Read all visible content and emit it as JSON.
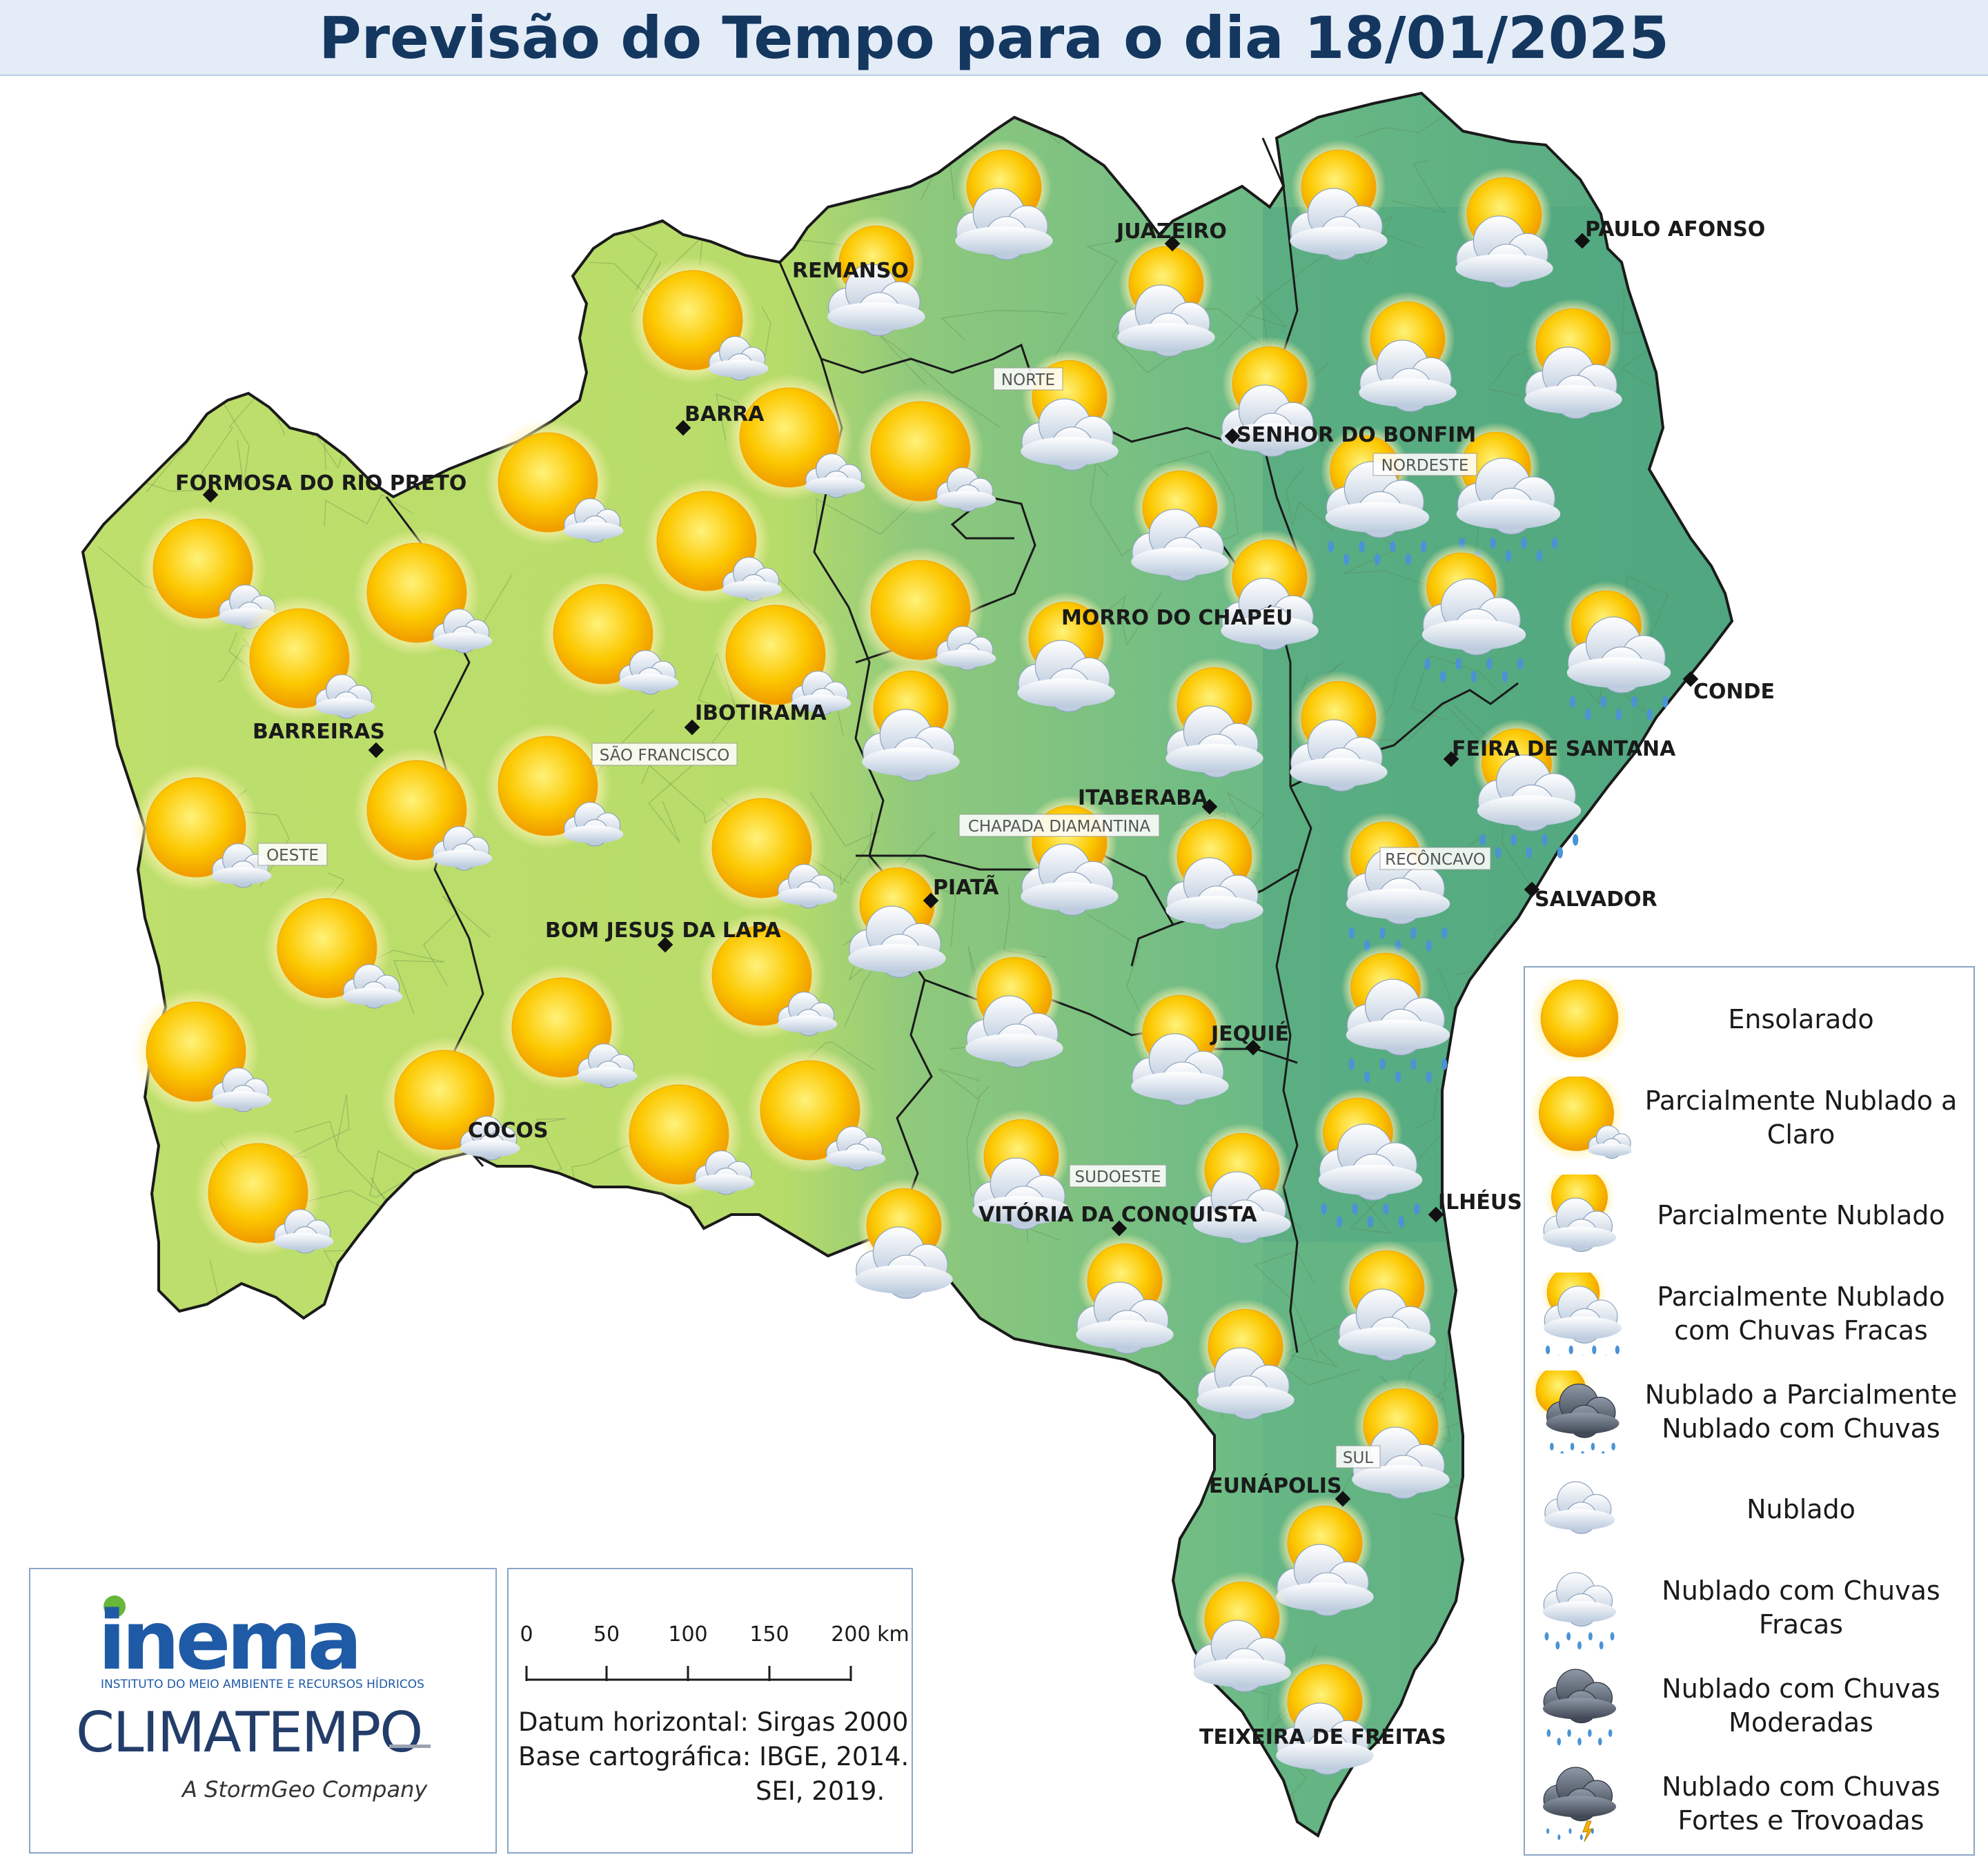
{
  "title": "Previsão do Tempo para o dia 18/01/2025",
  "colors": {
    "west_fill": "#bedf6c",
    "east_fill": "#6cba86",
    "coast_fill": "#4fa67f",
    "border": "#1a1a1a",
    "title_text": "#14375f",
    "inema_blue": "#1f5aa6",
    "inema_green": "#67b73a"
  },
  "cities": [
    {
      "name": "JUAZEIRO",
      "icon": "diamond-marker"
    },
    {
      "name": "PAULO AFONSO",
      "icon": "diamond-marker"
    },
    {
      "name": "REMANSO",
      "icon": "diamond-marker"
    },
    {
      "name": "BARRA",
      "icon": "diamond-marker"
    },
    {
      "name": "FORMOSA DO RIO PRETO",
      "icon": "diamond-marker"
    },
    {
      "name": "SENHOR DO BONFIM",
      "icon": "diamond-marker"
    },
    {
      "name": "MORRO DO CHAPÉU",
      "icon": "diamond-marker"
    },
    {
      "name": "IBOTIRAMA",
      "icon": "diamond-marker"
    },
    {
      "name": "BARREIRAS",
      "icon": "diamond-marker"
    },
    {
      "name": "CONDE",
      "icon": "diamond-marker"
    },
    {
      "name": "FEIRA DE SANTANA",
      "icon": "diamond-marker"
    },
    {
      "name": "ITABERABA",
      "icon": "diamond-marker"
    },
    {
      "name": "PIATÃ",
      "icon": "diamond-marker"
    },
    {
      "name": "SALVADOR",
      "icon": "diamond-marker"
    },
    {
      "name": "BOM JESUS DA LAPA",
      "icon": "diamond-marker"
    },
    {
      "name": "JEQUIÉ",
      "icon": "diamond-marker"
    },
    {
      "name": "COCOS",
      "icon": "diamond-marker"
    },
    {
      "name": "ILHÉUS",
      "icon": "diamond-marker"
    },
    {
      "name": "VITÓRIA DA CONQUISTA",
      "icon": "diamond-marker"
    },
    {
      "name": "EUNÁPOLIS",
      "icon": "diamond-marker"
    },
    {
      "name": "TEIXEIRA DE FREITAS",
      "icon": "diamond-marker"
    }
  ],
  "regions": [
    "NORTE",
    "NORDESTE",
    "SÃO FRANCISCO",
    "OESTE",
    "CHAPADA DIAMANTINA",
    "RECÔNCAVO",
    "SUDOESTE",
    "SUL"
  ],
  "legend": [
    {
      "label": "Ensolarado",
      "icon": "sun-icon"
    },
    {
      "label": "Parcialmente Nublado a Claro",
      "icon": "sun-small-cloud-icon"
    },
    {
      "label": "Parcialmente Nublado",
      "icon": "sun-cloud-icon"
    },
    {
      "label": "Parcialmente Nublado com Chuvas Fracas",
      "icon": "sun-cloud-light-rain-icon"
    },
    {
      "label": "Nublado a Parcialmente Nublado com Chuvas",
      "icon": "sun-dark-cloud-rain-icon"
    },
    {
      "label": "Nublado",
      "icon": "cloud-icon"
    },
    {
      "label": "Nublado com Chuvas Fracas",
      "icon": "cloud-light-rain-icon"
    },
    {
      "label": "Nublado com Chuvas Moderadas",
      "icon": "dark-cloud-rain-icon"
    },
    {
      "label": "Nublado com Chuvas Fortes e Trovoadas",
      "icon": "storm-cloud-icon"
    }
  ],
  "logos": {
    "inema": "inema",
    "inema_subtitle": "INSTITUTO DO MEIO AMBIENTE E RECURSOS HÍDRICOS",
    "climatempo": "CLIMATEMPO",
    "climatempo_subtitle": "A StormGeo Company"
  },
  "scale": {
    "ticks": [
      "0",
      "50",
      "100",
      "150",
      "200 km"
    ]
  },
  "notes": {
    "datum": "Datum horizontal: Sirgas 2000",
    "base": "Base cartográfica: IBGE, 2014.",
    "sei": "SEI, 2019."
  }
}
